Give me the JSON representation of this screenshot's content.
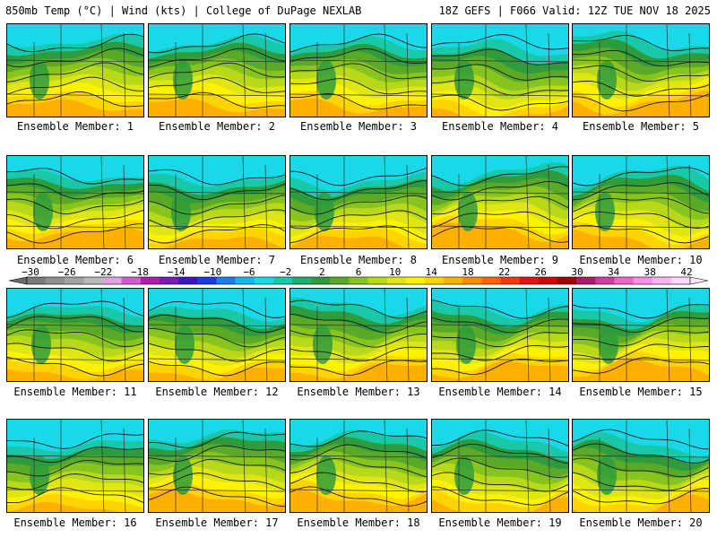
{
  "header": {
    "left": "850mb Temp (°C) | Wind (kts) | College of DuPage NEXLAB",
    "right": "18Z GEFS | F066 Valid: 12Z TUE NOV 18 2025"
  },
  "panels": [
    {
      "label": "Ensemble Member: 1"
    },
    {
      "label": "Ensemble Member: 2"
    },
    {
      "label": "Ensemble Member: 3"
    },
    {
      "label": "Ensemble Member: 4"
    },
    {
      "label": "Ensemble Member: 5"
    },
    {
      "label": "Ensemble Member: 6"
    },
    {
      "label": "Ensemble Member: 7"
    },
    {
      "label": "Ensemble Member: 8"
    },
    {
      "label": "Ensemble Member: 9"
    },
    {
      "label": "Ensemble Member: 10"
    },
    {
      "label": "Ensemble Member: 11"
    },
    {
      "label": "Ensemble Member: 12"
    },
    {
      "label": "Ensemble Member: 13"
    },
    {
      "label": "Ensemble Member: 14"
    },
    {
      "label": "Ensemble Member: 15"
    },
    {
      "label": "Ensemble Member: 16"
    },
    {
      "label": "Ensemble Member: 17"
    },
    {
      "label": "Ensemble Member: 18"
    },
    {
      "label": "Ensemble Member: 19"
    },
    {
      "label": "Ensemble Member: 20"
    }
  ],
  "colorbar": {
    "labels": [
      "−30",
      "−26",
      "−22",
      "−18",
      "−14",
      "−10",
      "−6",
      "−2",
      "2",
      "6",
      "10",
      "14",
      "18",
      "22",
      "26",
      "30",
      "34",
      "38",
      "42"
    ],
    "colors": [
      "#7b7b7b",
      "#8f8f8f",
      "#a3a3a3",
      "#b9b9b9",
      "#e3a0e3",
      "#d65ad6",
      "#b31ab3",
      "#7a1ab8",
      "#3c18c0",
      "#1a3ce0",
      "#1a7ef0",
      "#1ab4f0",
      "#19d9e8",
      "#19c8a8",
      "#19b070",
      "#2e9c3c",
      "#5aaa28",
      "#88c41e",
      "#b8d81a",
      "#e0e614",
      "#fff200",
      "#ffd400",
      "#ffb000",
      "#ff8c00",
      "#ff6400",
      "#f03c00",
      "#e01414",
      "#c80a0a",
      "#a00000",
      "#b0186c",
      "#d03ca0",
      "#f064c8",
      "#ff8ce6",
      "#ffb4f0",
      "#ffd6f8"
    ]
  }
}
